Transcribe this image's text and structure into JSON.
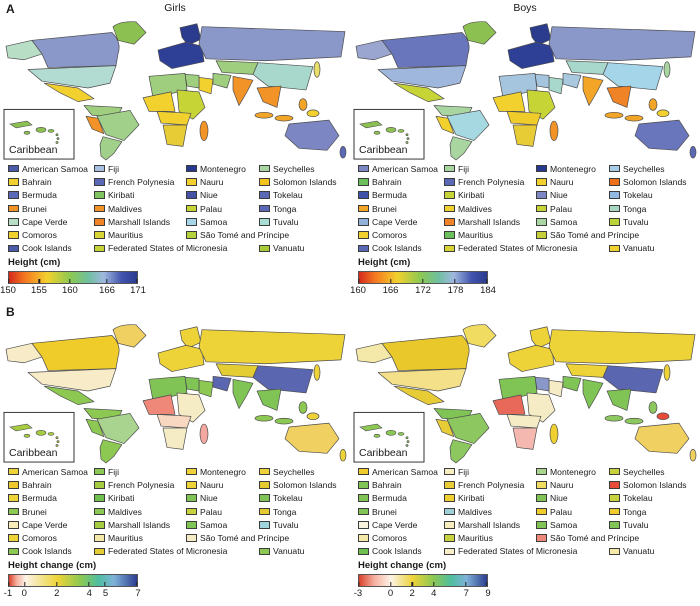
{
  "panels": {
    "a": "A",
    "b": "B"
  },
  "legend_names": {
    "col1": [
      "American Samoa",
      "Bahrain",
      "Bermuda",
      "Brunei",
      "Cape Verde",
      "Comoros",
      "Cook Islands"
    ],
    "col2": [
      "Fiji",
      "French Polynesia",
      "Kiribati",
      "Maldives",
      "Marshall Islands",
      "Mauritius",
      "Federated States of Micronesia"
    ],
    "col3": [
      "Montenegro",
      "Nauru",
      "Niue",
      "Palau",
      "Samoa",
      "São Tomé and Príncipe"
    ],
    "col4": [
      "Seychelles",
      "Solomon Islands",
      "Tokelau",
      "Tonga",
      "Tuvalu",
      null,
      "Vanuatu"
    ]
  },
  "gradients": {
    "height": [
      {
        "c": "#d42a1e",
        "p": 0
      },
      {
        "c": "#f57b20",
        "p": 13
      },
      {
        "c": "#f2d12e",
        "p": 30
      },
      {
        "c": "#8cc852",
        "p": 48
      },
      {
        "c": "#6fbf9f",
        "p": 62
      },
      {
        "c": "#9fb8df",
        "p": 74
      },
      {
        "c": "#4153ad",
        "p": 88
      },
      {
        "c": "#2b3c8f",
        "p": 100
      }
    ],
    "change_girls": [
      {
        "c": "#d8402c",
        "p": 0
      },
      {
        "c": "#f6b0a0",
        "p": 6
      },
      {
        "c": "#fdf3e6",
        "p": 13
      },
      {
        "c": "#f2e28a",
        "p": 26
      },
      {
        "c": "#eed338",
        "p": 38
      },
      {
        "c": "#8cc852",
        "p": 56
      },
      {
        "c": "#4fbda0",
        "p": 70
      },
      {
        "c": "#7fb2d8",
        "p": 82
      },
      {
        "c": "#2b3c8f",
        "p": 100
      }
    ],
    "change_boys": [
      {
        "c": "#d8402c",
        "p": 0
      },
      {
        "c": "#f6b0a0",
        "p": 12
      },
      {
        "c": "#fdf3e6",
        "p": 25
      },
      {
        "c": "#f2e28a",
        "p": 34
      },
      {
        "c": "#eed338",
        "p": 42
      },
      {
        "c": "#8cc852",
        "p": 58
      },
      {
        "c": "#4fbda0",
        "p": 72
      },
      {
        "c": "#7fb2d8",
        "p": 84
      },
      {
        "c": "#2b3c8f",
        "p": 100
      }
    ]
  },
  "quadrants": [
    {
      "id": "girls-height",
      "title": "Girls",
      "inset_label": "Caribbean",
      "scale": {
        "label": "Height (cm)",
        "gradient": "height",
        "ticks": [
          {
            "t": "150",
            "p": 0
          },
          {
            "t": "155",
            "p": 23.8
          },
          {
            "t": "160",
            "p": 47.6
          },
          {
            "t": "166",
            "p": 76.2
          },
          {
            "t": "171",
            "p": 100
          }
        ]
      },
      "legend_colors": {
        "col1": [
          "#4a5aa8",
          "#f2d12e",
          "#5a68b5",
          "#f29327",
          "#b9dec6",
          "#f2d12e",
          "#4a5aa8"
        ],
        "col2": [
          "#a9bfdf",
          "#5a68b5",
          "#7fc35f",
          "#f29327",
          "#ef8326",
          "#d9d435",
          "#c7d436"
        ],
        "col3": [
          "#27388f",
          "#f2d12e",
          "#4752a5",
          "#c7d436",
          "#a6d6e8",
          "#b4d23c"
        ],
        "col4": [
          "#a9d5a2",
          "#f3c51c",
          "#5a68b5",
          "#5a68b5",
          "#a8ddd3",
          null,
          "#a9cb35"
        ]
      },
      "map_colors": {
        "greenland": "#8cc152",
        "alaska": "#b9dec6",
        "canada": "#8a97c9",
        "usa": "#b2dcd2",
        "mexico": "#f2d12e",
        "sa_north": "#9fce7f",
        "peru": "#f29327",
        "brazil": "#a0d08a",
        "argentina": "#a0d08a",
        "scandinavia": "#2b3c8f",
        "europe": "#2e3f96",
        "russia": "#8a97c9",
        "kazakhstan": "#9fce7f",
        "china": "#a8d8cc",
        "iran": "#9fce7f",
        "saudi": "#f2d12e",
        "egypt": "#9fce7f",
        "north_africa": "#9fce7f",
        "west_africa": "#f2d12e",
        "east_africa": "#c7d436",
        "central_africa": "#f2d12e",
        "southern_africa": "#e8cc35",
        "madagascar": "#f29327",
        "india": "#f29327",
        "se_asia": "#f29327",
        "indonesia": "#f2a527",
        "japan": "#e8e06a",
        "png": "#f2d12e",
        "australia": "#7b86c3",
        "new_zealand": "#5a68b5",
        "caribbean": "#8cc152"
      }
    },
    {
      "id": "boys-height",
      "title": "Boys",
      "inset_label": "Caribbean",
      "scale": {
        "label": "Height (cm)",
        "gradient": "height",
        "ticks": [
          {
            "t": "160",
            "p": 0
          },
          {
            "t": "166",
            "p": 25
          },
          {
            "t": "172",
            "p": 50
          },
          {
            "t": "178",
            "p": 75
          },
          {
            "t": "184",
            "p": 100
          }
        ]
      },
      "legend_colors": {
        "col1": [
          "#7b86c3",
          "#6cbf5c",
          "#3f51a8",
          "#f2a527",
          "#92b2da",
          "#f2d12e",
          "#5a68b5"
        ],
        "col2": [
          "#a9d6a0",
          "#5a68b5",
          "#c7d436",
          "#f2d12e",
          "#ef8326",
          "#6cbf5c",
          "#d9d435"
        ],
        "col3": [
          "#27388f",
          "#f2d12e",
          "#7b86c3",
          "#c7d436",
          "#a9d6a2",
          "#c5cf3a"
        ],
        "col4": [
          "#a9cde6",
          "#ee7118",
          "#92b9e2",
          "#a8d8c2",
          "#b8d437",
          null,
          "#f2d12e"
        ]
      },
      "map_colors": {
        "greenland": "#8cc152",
        "alaska": "#9aa5d0",
        "canada": "#6a76bb",
        "usa": "#9fb6dd",
        "mexico": "#c7d436",
        "sa_north": "#a9d6a0",
        "peru": "#f2d12e",
        "brazil": "#a5d8e0",
        "argentina": "#a9d6a0",
        "scandinavia": "#2b3c8f",
        "europe": "#2e3f96",
        "russia": "#8a97c9",
        "kazakhstan": "#a8d8cc",
        "china": "#a5d5e8",
        "iran": "#a8c8e0",
        "saudi": "#a8d8cc",
        "egypt": "#a5c4dd",
        "north_africa": "#a5c4dd",
        "west_africa": "#f2d12e",
        "east_africa": "#c7d436",
        "central_africa": "#f0cc2a",
        "southern_africa": "#e8cc35",
        "madagascar": "#f29327",
        "india": "#f2a527",
        "se_asia": "#ef8326",
        "indonesia": "#f2a527",
        "japan": "#a9d6a0",
        "png": "#f2d12e",
        "australia": "#6a76bb",
        "new_zealand": "#5a68b5",
        "caribbean": "#8cc152"
      }
    },
    {
      "id": "girls-height-change",
      "title": "",
      "inset_label": "Caribbean",
      "scale": {
        "label": "Height change (cm)",
        "gradient": "change_girls",
        "ticks": [
          {
            "t": "-1",
            "p": 0
          },
          {
            "t": "0",
            "p": 12.5
          },
          {
            "t": "2",
            "p": 37.5
          },
          {
            "t": "4",
            "p": 62.5
          },
          {
            "t": "5",
            "p": 75
          },
          {
            "t": "7",
            "p": 100
          }
        ]
      },
      "legend_colors": {
        "col1": [
          "#eed338",
          "#eec72c",
          "#eed338",
          "#8cc852",
          "#f7ecba",
          "#eed338",
          "#8cc852"
        ],
        "col2": [
          "#8cc852",
          "#a6cc40",
          "#6fc04f",
          "#8cc852",
          "#a6cc40",
          "#f5e9a9",
          "#e4cc33"
        ],
        "col3": [
          "#eed338",
          "#eed338",
          "#7fc455",
          "#c7d23c",
          "#7fc455",
          "#f5ecc6"
        ],
        "col4": [
          "#eed338",
          "#e4cb30",
          "#7fc455",
          "#e4cb30",
          "#a0d5dd",
          null,
          "#8cc852"
        ]
      },
      "map_colors": {
        "greenland": "#f0d060",
        "alaska": "#f8ecc8",
        "canada": "#f0cc2a",
        "usa": "#f8ecc8",
        "mexico": "#8cc852",
        "sa_north": "#8cc852",
        "peru": "#8cc852",
        "brazil": "#a9d48f",
        "argentina": "#8cc852",
        "scandinavia": "#eed338",
        "europe": "#eed338",
        "russia": "#eed338",
        "kazakhstan": "#e4cc33",
        "china": "#5a66b0",
        "iran": "#5a66b0",
        "saudi": "#8cc852",
        "egypt": "#7fc455",
        "north_africa": "#7fc455",
        "west_africa": "#f0887a",
        "east_africa": "#f5ecc6",
        "central_africa": "#f8d8c0",
        "southern_africa": "#f5ecc6",
        "madagascar": "#f4a8a0",
        "india": "#7fc455",
        "se_asia": "#7fc455",
        "indonesia": "#8cc852",
        "japan": "#eed338",
        "png": "#eed338",
        "australia": "#f0d060",
        "new_zealand": "#eed338",
        "caribbean": "#a6cc40"
      }
    },
    {
      "id": "boys-height-change",
      "title": "",
      "inset_label": "Caribbean",
      "scale": {
        "label": "Height change (cm)",
        "gradient": "change_boys",
        "ticks": [
          {
            "t": "-3",
            "p": 0
          },
          {
            "t": "0",
            "p": 25
          },
          {
            "t": "2",
            "p": 41.7
          },
          {
            "t": "4",
            "p": 58.3
          },
          {
            "t": "7",
            "p": 83.3
          },
          {
            "t": "9",
            "p": 100
          }
        ]
      },
      "legend_colors": {
        "col1": [
          "#f0cc2a",
          "#7fc455",
          "#7fc455",
          "#7fc455",
          "#f8f3dd",
          "#f5e9a9",
          "#6fc04f"
        ],
        "col2": [
          "#f5ecc0",
          "#e8cc35",
          "#f0d030",
          "#9fd0d8",
          "#f5ecc0",
          "#c7d23c",
          "#f8efc8"
        ],
        "col3": [
          "#a9d48f",
          "#f0dc60",
          "#7fc455",
          "#f0cc2a",
          "#7fc455",
          "#f0887a"
        ],
        "col4": [
          "#c7d23c",
          "#e84c38",
          "#c7d23c",
          "#f0cc2a",
          "#7fc455",
          null,
          "#f5e9a9"
        ]
      },
      "map_colors": {
        "greenland": "#f0dc60",
        "alaska": "#f5e9a9",
        "canada": "#e8c82a",
        "usa": "#f5e08a",
        "mexico": "#e8cc35",
        "sa_north": "#7fc455",
        "peru": "#e8cc35",
        "brazil": "#8cc85f",
        "argentina": "#8cc85f",
        "scandinavia": "#eed338",
        "europe": "#eed338",
        "russia": "#eed338",
        "kazakhstan": "#eed338",
        "china": "#5a66b0",
        "iran": "#7fc455",
        "saudi": "#f5ecc6",
        "egypt": "#8a97c9",
        "north_africa": "#7fc455",
        "west_africa": "#e8685a",
        "east_africa": "#f5ecc6",
        "central_africa": "#f5ecc6",
        "southern_africa": "#f4b8b0",
        "madagascar": "#f0d030",
        "india": "#7fc455",
        "se_asia": "#7fc455",
        "indonesia": "#8cc85f",
        "japan": "#eed338",
        "png": "#e84c38",
        "australia": "#f0d060",
        "new_zealand": "#f0d060",
        "caribbean": "#8cc852"
      }
    }
  ]
}
